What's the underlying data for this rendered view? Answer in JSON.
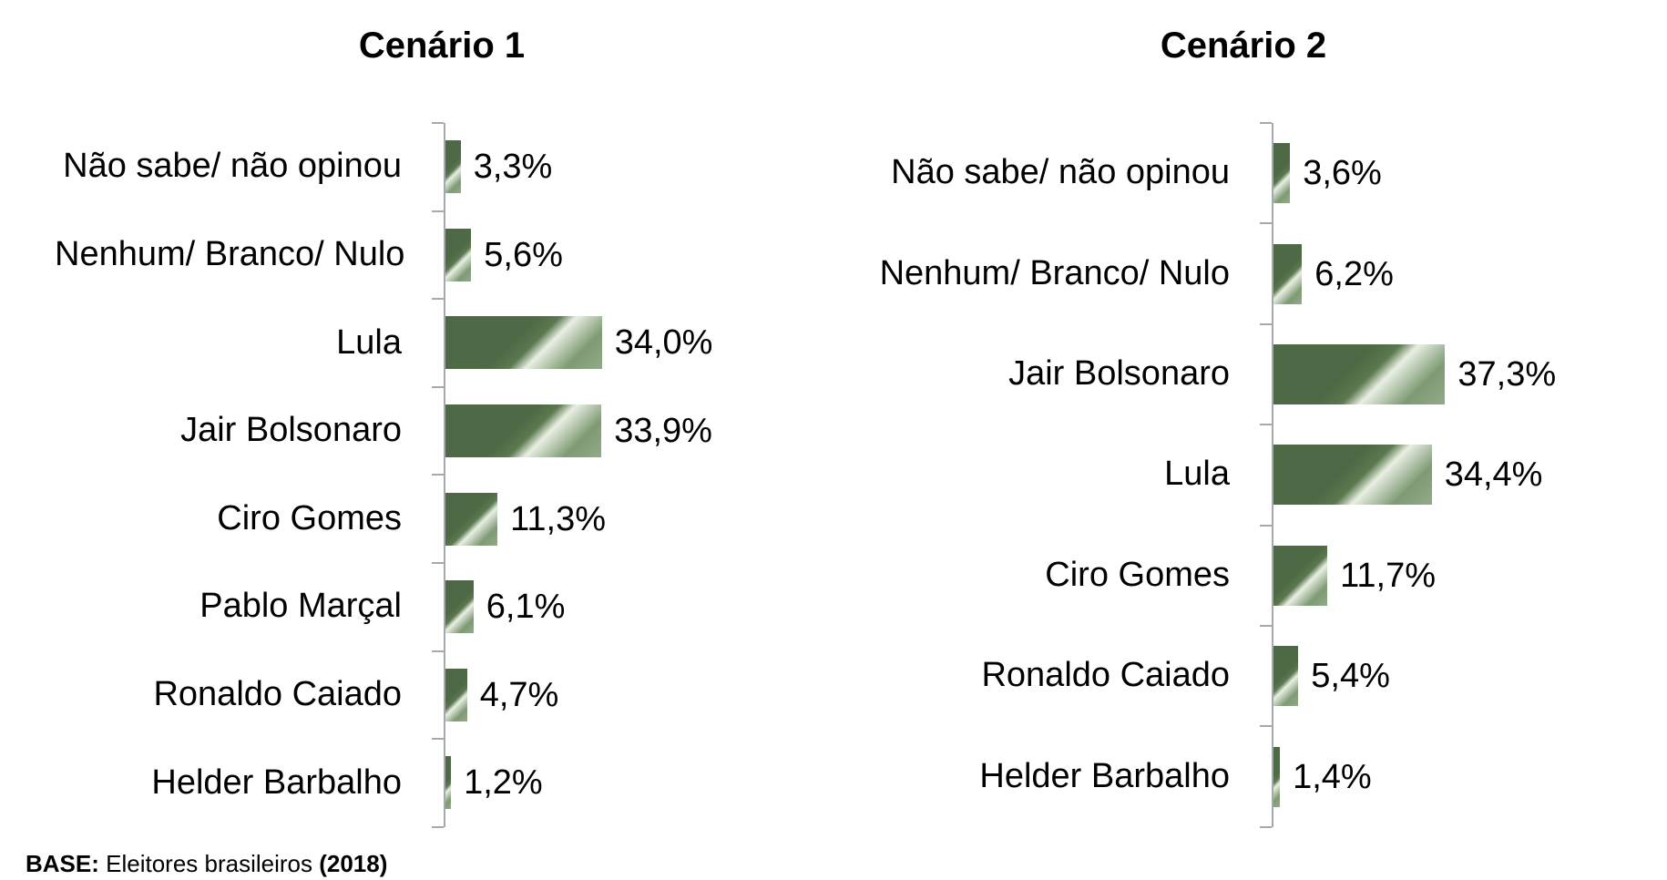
{
  "page": {
    "background": "#ffffff"
  },
  "colors": {
    "bar_dark": "#4d6945",
    "bar_highlight": "#e9efe3",
    "bar_end": "#93aa89",
    "axis": "#a5a8ae",
    "text": "#000000"
  },
  "footer": {
    "base_label": "BASE:",
    "base_text": " Eleitores brasileiros ",
    "base_year": "(2018)"
  },
  "chart_data": [
    {
      "type": "bar",
      "orientation": "horizontal",
      "title": "Cenário 1",
      "unit": "%",
      "axis_range": [
        0,
        40
      ],
      "grid": false,
      "legend": false,
      "categories": [
        "Não sabe/ não opinou",
        "Nenhum/ Branco/ Nulo",
        "Lula",
        "Jair Bolsonaro",
        "Ciro Gomes",
        "Pablo Marçal",
        "Ronaldo Caiado",
        "Helder Barbalho"
      ],
      "values": [
        3.3,
        5.6,
        34.0,
        33.9,
        11.3,
        6.1,
        4.7,
        1.2
      ],
      "value_labels": [
        "3,3%",
        "5,6%",
        "34,0%",
        "33,9%",
        "11,3%",
        "6,1%",
        "4,7%",
        "1,2%"
      ]
    },
    {
      "type": "bar",
      "orientation": "horizontal",
      "title": "Cenário 2",
      "unit": "%",
      "axis_range": [
        0,
        40
      ],
      "grid": false,
      "legend": false,
      "categories": [
        "Não sabe/ não opinou",
        "Nenhum/ Branco/ Nulo",
        "Jair Bolsonaro",
        "Lula",
        "Ciro Gomes",
        "Ronaldo Caiado",
        "Helder Barbalho"
      ],
      "values": [
        3.6,
        6.2,
        37.3,
        34.4,
        11.7,
        5.4,
        1.4
      ],
      "value_labels": [
        "3,6%",
        "6,2%",
        "37,3%",
        "34,4%",
        "11,7%",
        "5,4%",
        "1,4%"
      ]
    }
  ]
}
